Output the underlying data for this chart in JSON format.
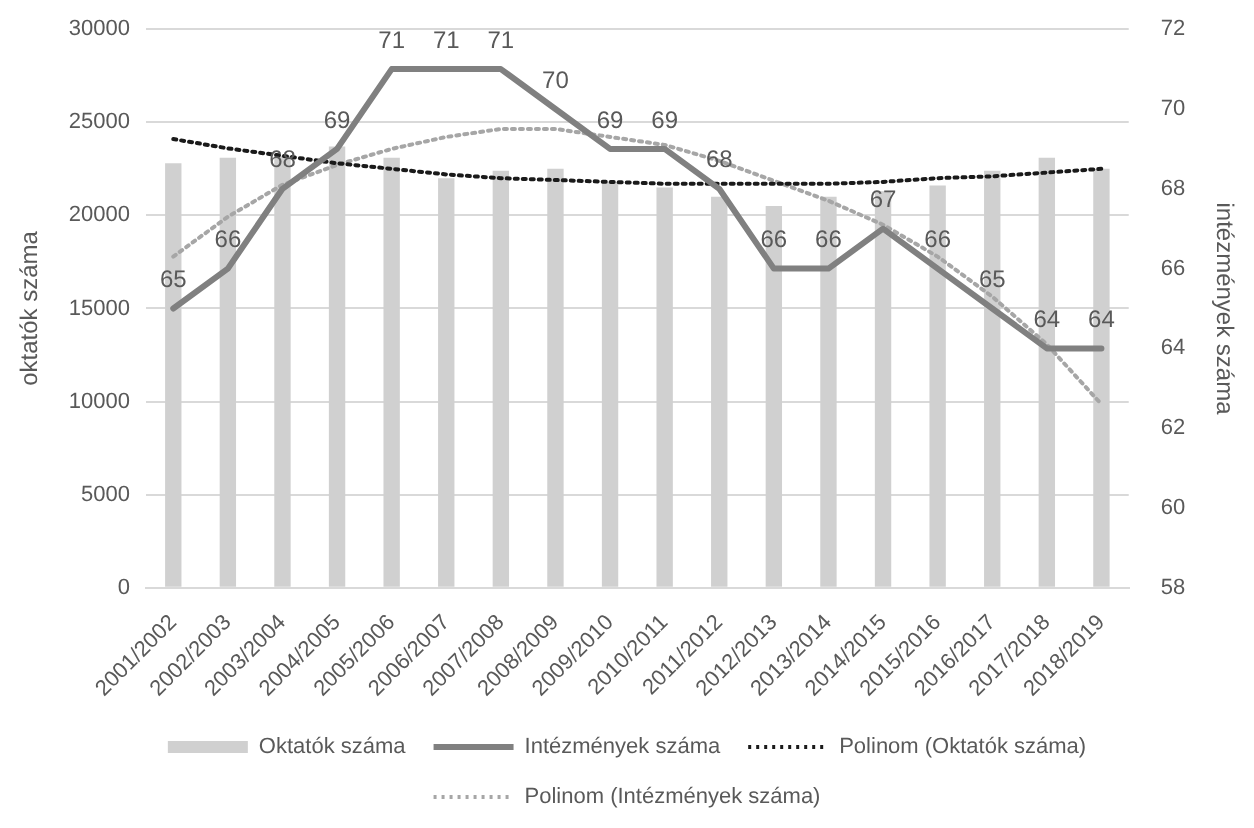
{
  "chart_data": {
    "type": "bar",
    "categories": [
      "2001/2002",
      "2002/2003",
      "2003/2004",
      "2004/2005",
      "2005/2006",
      "2006/2007",
      "2007/2008",
      "2008/2009",
      "2009/2010",
      "2010/2011",
      "2011/2012",
      "2012/2013",
      "2013/2014",
      "2014/2015",
      "2015/2016",
      "2016/2017",
      "2017/2018",
      "2018/2019"
    ],
    "series": [
      {
        "name": "Oktatók száma",
        "color": "#d0d0d0",
        "values": [
          22800,
          23100,
          23200,
          23700,
          23100,
          22000,
          22400,
          22500,
          21800,
          21500,
          21000,
          20500,
          21000,
          21300,
          21600,
          22400,
          23100,
          22500
        ]
      },
      {
        "type": "line",
        "name": "Intézmények száma",
        "color": "#808080",
        "axis": "y2",
        "line_style": "solid",
        "values": [
          65,
          66,
          68,
          69,
          71,
          71,
          71,
          70,
          69,
          69,
          68,
          66,
          66,
          67,
          66,
          65,
          64,
          64
        ],
        "value_labels": [
          "65",
          "66",
          "68",
          "69",
          "71",
          "71",
          "71",
          "70",
          "69",
          "69",
          "68",
          "66",
          "66",
          "67",
          "66",
          "65",
          "64",
          "64"
        ]
      },
      {
        "type": "line",
        "name": "Polinom (Oktatók száma)",
        "color": "#1a1a1a",
        "line_style": "dotted",
        "values": [
          24100,
          23600,
          23200,
          22800,
          22500,
          22200,
          22000,
          21900,
          21800,
          21700,
          21700,
          21700,
          21700,
          21800,
          22000,
          22100,
          22300,
          22500
        ]
      },
      {
        "type": "line",
        "name": "Polinom (Intézmények száma)",
        "color": "#a6a6a6",
        "axis": "y2",
        "line_style": "dotted",
        "values": [
          66.3,
          67.3,
          68.1,
          68.6,
          69.0,
          69.3,
          69.5,
          69.5,
          69.3,
          69.1,
          68.7,
          68.2,
          67.7,
          67.1,
          66.3,
          65.3,
          64.1,
          62.6
        ]
      }
    ],
    "ylabel": "oktatók száma",
    "y2label": "intézmények száma",
    "ylim": [
      0,
      30000
    ],
    "yticks": [
      0,
      5000,
      10000,
      15000,
      20000,
      25000,
      30000
    ],
    "y2lim": [
      58,
      72
    ],
    "y2ticks": [
      58,
      60,
      62,
      64,
      66,
      68,
      70,
      72
    ],
    "grid": "y",
    "legend": "bottom",
    "marker": "none"
  }
}
